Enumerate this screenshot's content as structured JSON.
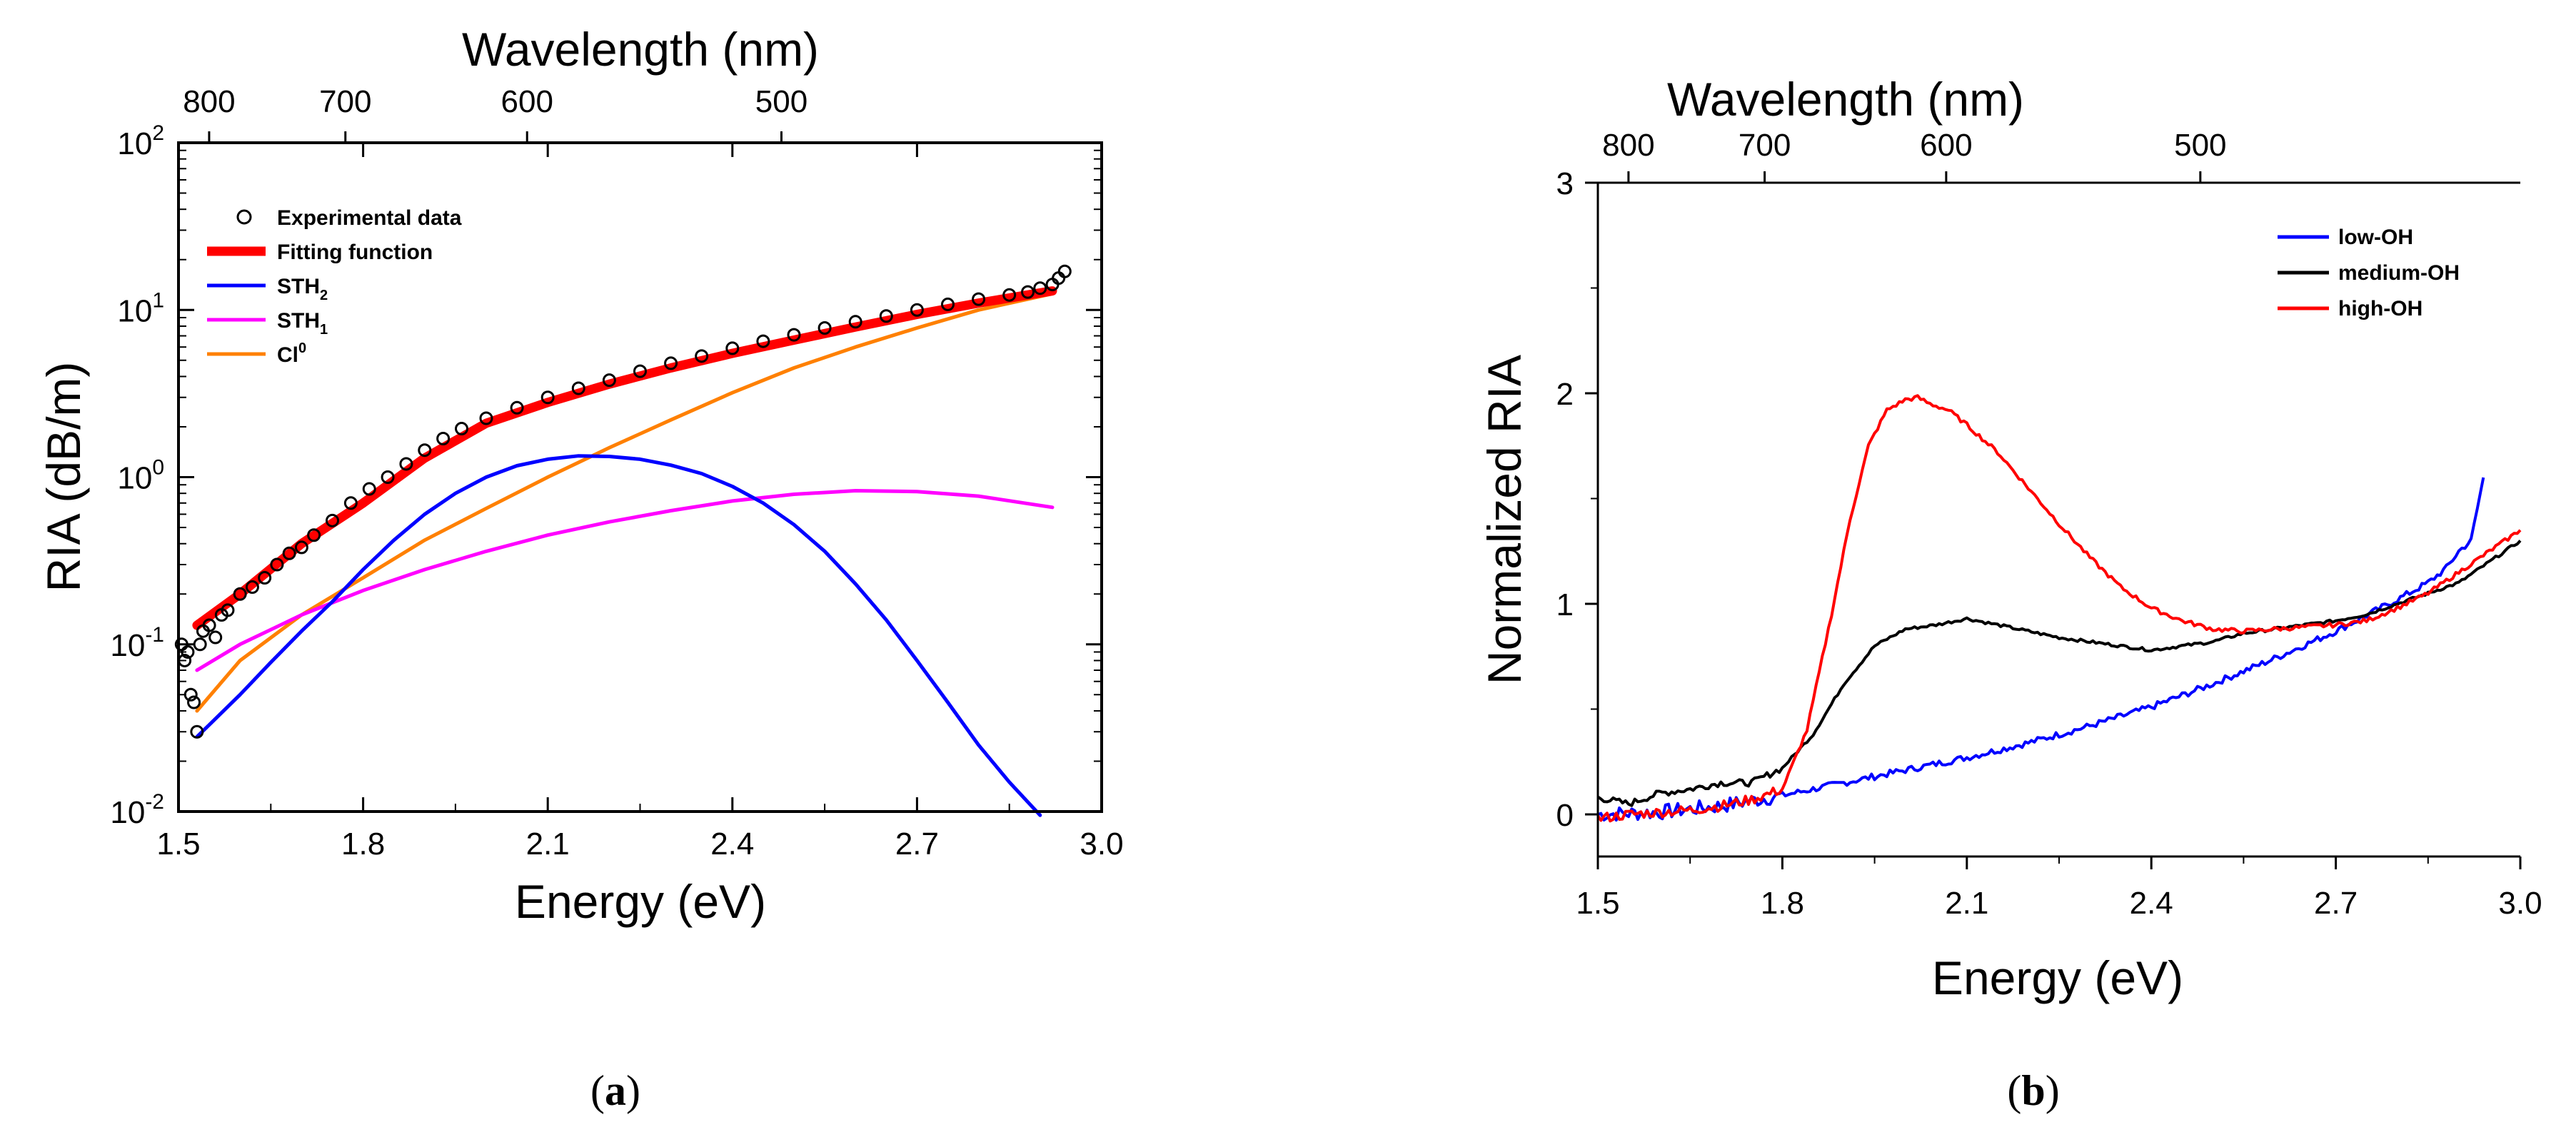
{
  "chart_data": [
    {
      "panel": "a",
      "type": "line",
      "panel_label": "a",
      "xlabel": "Energy (eV)",
      "ylabel": "RIA (dB/m)",
      "top_xlabel": "Wavelength (nm)",
      "xlim": [
        1.5,
        3.0
      ],
      "ylim": [
        0.01,
        100
      ],
      "yscale": "log",
      "xticks": [
        "1.5",
        "1.8",
        "2.1",
        "2.4",
        "2.7",
        "3.0"
      ],
      "yticks": [
        {
          "value": 0.01,
          "base": "10",
          "exp": "-2"
        },
        {
          "value": 0.1,
          "base": "10",
          "exp": "-1"
        },
        {
          "value": 1,
          "base": "10",
          "exp": "0"
        },
        {
          "value": 10,
          "base": "10",
          "exp": "1"
        },
        {
          "value": 100,
          "base": "10",
          "exp": "2"
        }
      ],
      "top_ticks": [
        {
          "label": "800",
          "wavelength_nm": 800
        },
        {
          "label": "700",
          "wavelength_nm": 700
        },
        {
          "label": "600",
          "wavelength_nm": 600
        },
        {
          "label": "500",
          "wavelength_nm": 500
        }
      ],
      "legend": [
        {
          "label": "Experimental data",
          "color": "#000000",
          "style": "circle"
        },
        {
          "label": "Fitting function",
          "color": "#ff0000",
          "style": "thick"
        },
        {
          "label": "STH",
          "sub": "2",
          "color": "#0000ff",
          "style": "line"
        },
        {
          "label": "STH",
          "sub": "1",
          "color": "#ff00ff",
          "style": "line"
        },
        {
          "label": "Cl",
          "sup": "0",
          "color": "#ff8000",
          "style": "line"
        }
      ],
      "series": [
        {
          "name": "Experimental data",
          "color": "#000000",
          "marker": "circle",
          "x": [
            1.505,
            1.51,
            1.515,
            1.52,
            1.525,
            1.53,
            1.535,
            1.54,
            1.55,
            1.56,
            1.57,
            1.58,
            1.6,
            1.62,
            1.64,
            1.66,
            1.68,
            1.7,
            1.72,
            1.75,
            1.78,
            1.81,
            1.84,
            1.87,
            1.9,
            1.93,
            1.96,
            2.0,
            2.05,
            2.1,
            2.15,
            2.2,
            2.25,
            2.3,
            2.35,
            2.4,
            2.45,
            2.5,
            2.55,
            2.6,
            2.65,
            2.7,
            2.75,
            2.8,
            2.85,
            2.88,
            2.9,
            2.92,
            2.93,
            2.94
          ],
          "y": [
            0.1,
            0.08,
            0.09,
            0.05,
            0.045,
            0.03,
            0.1,
            0.12,
            0.13,
            0.11,
            0.15,
            0.16,
            0.2,
            0.22,
            0.25,
            0.3,
            0.35,
            0.38,
            0.45,
            0.55,
            0.7,
            0.85,
            1.0,
            1.2,
            1.45,
            1.7,
            1.95,
            2.25,
            2.6,
            3.0,
            3.4,
            3.8,
            4.3,
            4.8,
            5.3,
            5.9,
            6.5,
            7.1,
            7.8,
            8.5,
            9.2,
            10.0,
            10.8,
            11.6,
            12.3,
            12.8,
            13.5,
            14.2,
            15.5,
            17.0
          ]
        },
        {
          "name": "Fitting function",
          "color": "#ff0000",
          "x": [
            1.53,
            1.6,
            1.7,
            1.8,
            1.9,
            2.0,
            2.1,
            2.2,
            2.3,
            2.4,
            2.5,
            2.6,
            2.7,
            2.8,
            2.92
          ],
          "y": [
            0.13,
            0.2,
            0.4,
            0.7,
            1.3,
            2.1,
            2.8,
            3.6,
            4.5,
            5.5,
            6.6,
            7.9,
            9.4,
            11.0,
            13.0
          ]
        },
        {
          "name": "STH2",
          "color": "#0000ff",
          "x": [
            1.53,
            1.55,
            1.6,
            1.65,
            1.7,
            1.75,
            1.8,
            1.85,
            1.9,
            1.95,
            2.0,
            2.05,
            2.1,
            2.15,
            2.2,
            2.25,
            2.3,
            2.35,
            2.4,
            2.45,
            2.5,
            2.55,
            2.6,
            2.65,
            2.7,
            2.75,
            2.8,
            2.85,
            2.9
          ],
          "y": [
            0.028,
            0.033,
            0.05,
            0.078,
            0.12,
            0.18,
            0.28,
            0.42,
            0.6,
            0.8,
            1.0,
            1.17,
            1.28,
            1.34,
            1.33,
            1.28,
            1.18,
            1.05,
            0.88,
            0.7,
            0.52,
            0.36,
            0.23,
            0.14,
            0.08,
            0.045,
            0.025,
            0.015,
            0.0095
          ]
        },
        {
          "name": "STH1",
          "color": "#ff00ff",
          "x": [
            1.53,
            1.6,
            1.7,
            1.8,
            1.9,
            2.0,
            2.1,
            2.2,
            2.3,
            2.4,
            2.5,
            2.6,
            2.7,
            2.8,
            2.92
          ],
          "y": [
            0.07,
            0.1,
            0.15,
            0.21,
            0.28,
            0.36,
            0.45,
            0.54,
            0.63,
            0.72,
            0.79,
            0.83,
            0.82,
            0.77,
            0.66
          ]
        },
        {
          "name": "Cl0",
          "color": "#ff8000",
          "x": [
            1.53,
            1.6,
            1.7,
            1.8,
            1.9,
            2.0,
            2.1,
            2.2,
            2.3,
            2.4,
            2.5,
            2.6,
            2.7,
            2.8,
            2.92
          ],
          "y": [
            0.04,
            0.08,
            0.15,
            0.25,
            0.42,
            0.65,
            1.0,
            1.5,
            2.2,
            3.2,
            4.5,
            6.0,
            7.8,
            10.0,
            12.5
          ]
        }
      ]
    },
    {
      "panel": "b",
      "type": "line",
      "panel_label": "b",
      "xlabel": "Energy (eV)",
      "ylabel": "Normalized RIA",
      "top_xlabel": "Wavelength (nm)",
      "xlim": [
        1.5,
        3.0
      ],
      "ylim": [
        -0.2,
        3.0
      ],
      "xticks": [
        "1.5",
        "1.8",
        "2.1",
        "2.4",
        "2.7",
        "3.0"
      ],
      "yticks": [
        "0",
        "1",
        "2",
        "3"
      ],
      "top_ticks": [
        {
          "label": "800",
          "wavelength_nm": 800
        },
        {
          "label": "700",
          "wavelength_nm": 700
        },
        {
          "label": "600",
          "wavelength_nm": 600
        },
        {
          "label": "500",
          "wavelength_nm": 500
        }
      ],
      "legend": [
        {
          "label": "low-OH",
          "color": "#0000ff"
        },
        {
          "label": "medium-OH",
          "color": "#000000"
        },
        {
          "label": "high-OH",
          "color": "#ff0000"
        }
      ],
      "series": [
        {
          "name": "low-OH",
          "color": "#0000ff",
          "x": [
            1.5,
            1.6,
            1.7,
            1.8,
            1.9,
            2.0,
            2.1,
            2.2,
            2.3,
            2.4,
            2.5,
            2.6,
            2.7,
            2.8,
            2.85,
            2.88,
            2.9,
            2.92,
            2.93,
            2.94
          ],
          "y": [
            0.0,
            0.01,
            0.04,
            0.09,
            0.15,
            0.21,
            0.27,
            0.34,
            0.42,
            0.51,
            0.62,
            0.74,
            0.87,
            1.02,
            1.1,
            1.17,
            1.25,
            1.3,
            1.45,
            1.6
          ]
        },
        {
          "name": "medium-OH",
          "color": "#000000",
          "x": [
            1.5,
            1.55,
            1.6,
            1.65,
            1.7,
            1.75,
            1.8,
            1.85,
            1.9,
            1.95,
            2.0,
            2.05,
            2.1,
            2.15,
            2.2,
            2.25,
            2.3,
            2.35,
            2.4,
            2.45,
            2.5,
            2.55,
            2.6,
            2.65,
            2.7,
            2.75,
            2.8,
            2.85,
            2.9,
            2.95,
            3.0
          ],
          "y": [
            0.08,
            0.05,
            0.1,
            0.12,
            0.15,
            0.15,
            0.22,
            0.38,
            0.62,
            0.8,
            0.88,
            0.9,
            0.93,
            0.9,
            0.87,
            0.84,
            0.82,
            0.8,
            0.78,
            0.8,
            0.82,
            0.86,
            0.88,
            0.9,
            0.92,
            0.95,
            1.0,
            1.05,
            1.1,
            1.2,
            1.3
          ]
        },
        {
          "name": "high-OH",
          "color": "#ff0000",
          "x": [
            1.5,
            1.55,
            1.6,
            1.65,
            1.7,
            1.75,
            1.8,
            1.84,
            1.88,
            1.91,
            1.94,
            1.97,
            2.0,
            2.02,
            2.04,
            2.07,
            2.1,
            2.15,
            2.2,
            2.25,
            2.3,
            2.35,
            2.4,
            2.45,
            2.5,
            2.55,
            2.6,
            2.65,
            2.7,
            2.75,
            2.8,
            2.85,
            2.9,
            2.95,
            3.0
          ],
          "y": [
            -0.02,
            0.0,
            0.01,
            0.02,
            0.04,
            0.07,
            0.12,
            0.4,
            0.95,
            1.4,
            1.75,
            1.92,
            1.97,
            1.98,
            1.95,
            1.92,
            1.85,
            1.72,
            1.55,
            1.38,
            1.22,
            1.08,
            0.98,
            0.92,
            0.88,
            0.87,
            0.88,
            0.89,
            0.9,
            0.92,
            0.98,
            1.05,
            1.15,
            1.25,
            1.35
          ]
        }
      ]
    }
  ]
}
